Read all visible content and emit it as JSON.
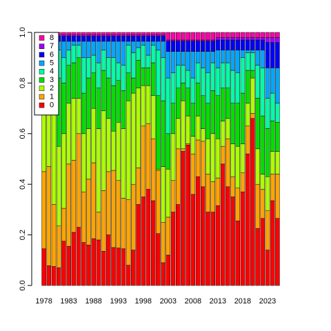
{
  "chart_data": {
    "type": "stacked-bar",
    "categories": [
      "1978",
      null,
      null,
      null,
      null,
      "1983",
      null,
      null,
      null,
      null,
      "1988",
      null,
      null,
      null,
      null,
      "1993",
      null,
      null,
      null,
      null,
      "1998",
      null,
      null,
      null,
      null,
      "2003",
      null,
      null,
      null,
      null,
      "2008",
      null,
      null,
      null,
      null,
      "2013",
      null,
      null,
      null,
      null,
      "2018",
      null,
      null,
      null,
      null,
      "2023",
      null,
      null
    ],
    "ylim": [
      0,
      1
    ],
    "yticks": [
      {
        "value": 0,
        "label": "0.0"
      },
      0.2,
      0.4,
      0.6,
      0.8,
      {
        "value": 1,
        "label": "1.0"
      }
    ],
    "legend": "topleft",
    "series": [
      {
        "name": "0",
        "color": "#FF0000",
        "values": [
          0.145,
          0.078,
          0.075,
          0.07,
          0.175,
          0.155,
          0.21,
          0.23,
          0.17,
          0.16,
          0.185,
          0.18,
          0.135,
          0.2,
          0.15,
          0.148,
          0.145,
          0.08,
          0.14,
          0.32,
          0.35,
          0.38,
          0.335,
          0.205,
          0.09,
          0.12,
          0.29,
          0.32,
          0.53,
          0.555,
          0.36,
          0.43,
          0.39,
          0.29,
          0.29,
          0.315,
          0.48,
          0.39,
          0.35,
          0.255,
          0.37,
          0.52,
          0.66,
          0.225,
          0.265,
          0.14,
          0.335,
          0.265
        ]
      },
      {
        "name": "1",
        "color": "#FFA500",
        "values": [
          0.305,
          0.392,
          0.245,
          0.165,
          0.13,
          0.325,
          0.285,
          0.37,
          0.2,
          0.26,
          0.3,
          0.11,
          0.24,
          0.25,
          0.305,
          0.267,
          0.2,
          0.26,
          0.26,
          0.145,
          0.28,
          0.26,
          0.245,
          0.25,
          0.16,
          0.15,
          0.125,
          0.22,
          0.01,
          0.005,
          0.16,
          0.145,
          0.18,
          0.15,
          0.12,
          0.11,
          0.07,
          0.19,
          0.08,
          0.13,
          0.075,
          0.11,
          0.02,
          0.175,
          0.115,
          0.155,
          0.105,
          0.175
        ]
      },
      {
        "name": "2",
        "color": "#AEFF00",
        "values": [
          0.25,
          0.23,
          0.52,
          0.315,
          0.295,
          0.24,
          0.245,
          0.14,
          0.23,
          0.2,
          0.215,
          0.33,
          0.315,
          0.21,
          0.155,
          0.23,
          0.275,
          0.39,
          0.36,
          0.315,
          0.16,
          0.15,
          0.17,
          0.005,
          0.22,
          0.19,
          0.185,
          0.12,
          0.19,
          0.11,
          0.07,
          0.095,
          0.05,
          0.14,
          0.19,
          0.155,
          0.1,
          0.08,
          0.13,
          0.165,
          0.115,
          0.09,
          0.14,
          0.14,
          0.06,
          0.135,
          0.09,
          0.09
        ]
      },
      {
        "name": "3",
        "color": "#00E000",
        "values": [
          0.12,
          0.18,
          0.06,
          0.27,
          0.2,
          0.15,
          0.14,
          0.16,
          0.16,
          0.2,
          0.14,
          0.16,
          0.16,
          0.16,
          0.18,
          0.165,
          0.15,
          0.11,
          0.06,
          0.11,
          0.07,
          0.07,
          0.13,
          0.29,
          0.26,
          0.14,
          0.12,
          0.12,
          0.07,
          0.11,
          0.13,
          0.13,
          0.13,
          0.14,
          0.17,
          0.17,
          0.13,
          0.12,
          0.16,
          0.17,
          0.2,
          0.13,
          0.03,
          0.2,
          0.23,
          0.19,
          0.12,
          0.115
        ]
      },
      {
        "name": "4",
        "color": "#00FFA8",
        "values": [
          0.11,
          0.07,
          0.05,
          0.11,
          0.1,
          0.06,
          0.07,
          0.05,
          0.14,
          0.08,
          0.07,
          0.1,
          0.08,
          0.08,
          0.11,
          0.07,
          0.1,
          0.11,
          0.1,
          0.05,
          0.09,
          0.05,
          0.07,
          0.18,
          0.17,
          0.22,
          0.12,
          0.09,
          0.07,
          0.07,
          0.1,
          0.08,
          0.11,
          0.12,
          0.11,
          0.11,
          0.1,
          0.1,
          0.13,
          0.12,
          0.14,
          0.07,
          0.07,
          0.13,
          0.19,
          0.12,
          0.11,
          0.075
        ]
      },
      {
        "name": "5",
        "color": "#00A8FF",
        "values": [
          0.035,
          0.015,
          0.015,
          0.035,
          0.065,
          0.035,
          0.015,
          0.015,
          0.065,
          0.065,
          0.055,
          0.085,
          0.035,
          0.065,
          0.065,
          0.085,
          0.095,
          0.015,
          0.045,
          0.025,
          0.015,
          0.055,
          0.015,
          0.035,
          0.065,
          0.105,
          0.085,
          0.055,
          0.055,
          0.075,
          0.105,
          0.045,
          0.065,
          0.085,
          0.045,
          0.07,
          0.05,
          0.05,
          0.08,
          0.09,
          0.03,
          0.01,
          0.01,
          0.06,
          0.07,
          0.12,
          0.1,
          0.14
        ]
      },
      {
        "name": "6",
        "color": "#0000FF",
        "values": [
          0.02,
          0.02,
          0.02,
          0.02,
          0.02,
          0.02,
          0.02,
          0.02,
          0.02,
          0.02,
          0.02,
          0.02,
          0.02,
          0.02,
          0.02,
          0.02,
          0.02,
          0.02,
          0.02,
          0.02,
          0.02,
          0.02,
          0.02,
          0.02,
          0.02,
          0.04,
          0.04,
          0.04,
          0.04,
          0.04,
          0.04,
          0.04,
          0.04,
          0.04,
          0.04,
          0.04,
          0.04,
          0.04,
          0.04,
          0.04,
          0.04,
          0.04,
          0.04,
          0.04,
          0.04,
          0.1,
          0.1,
          0.1
        ]
      },
      {
        "name": "7",
        "color": "#A000FF",
        "values": [
          0.005,
          0.005,
          0.005,
          0.005,
          0.005,
          0.005,
          0.005,
          0.005,
          0.005,
          0.005,
          0.005,
          0.005,
          0.005,
          0.005,
          0.005,
          0.005,
          0.005,
          0.005,
          0.005,
          0.005,
          0.005,
          0.005,
          0.005,
          0.005,
          0.005,
          0.005,
          0.005,
          0.005,
          0.005,
          0.005,
          0.005,
          0.005,
          0.005,
          0.005,
          0.005,
          0.01,
          0.01,
          0.01,
          0.01,
          0.01,
          0.01,
          0.01,
          0.01,
          0.01,
          0.01,
          0.02,
          0.02,
          0.02
        ]
      },
      {
        "name": "8",
        "color": "#FF00A8",
        "values": [
          0.01,
          0.01,
          0.01,
          0.01,
          0.01,
          0.01,
          0.01,
          0.01,
          0.01,
          0.01,
          0.01,
          0.01,
          0.01,
          0.01,
          0.01,
          0.01,
          0.01,
          0.01,
          0.01,
          0.01,
          0.01,
          0.01,
          0.01,
          0.01,
          0.01,
          0.03,
          0.03,
          0.03,
          0.03,
          0.03,
          0.03,
          0.03,
          0.03,
          0.03,
          0.03,
          0.02,
          0.02,
          0.02,
          0.02,
          0.02,
          0.02,
          0.02,
          0.02,
          0.02,
          0.02,
          0.02,
          0.02,
          0.02
        ]
      }
    ]
  }
}
